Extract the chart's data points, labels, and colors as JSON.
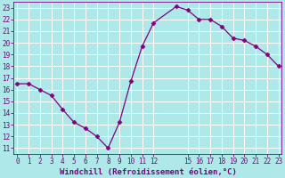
{
  "x": [
    0,
    1,
    2,
    3,
    4,
    5,
    6,
    7,
    8,
    9,
    10,
    11,
    12,
    14,
    15,
    16,
    17,
    18,
    19,
    20,
    21,
    22,
    23
  ],
  "y": [
    16.5,
    16.5,
    16.0,
    15.5,
    14.3,
    13.2,
    12.7,
    12.0,
    11.0,
    13.2,
    16.7,
    19.7,
    21.7,
    23.1,
    22.8,
    22.0,
    22.0,
    21.4,
    20.4,
    20.2,
    19.7,
    19.0,
    18.0
  ],
  "line_color": "#800080",
  "marker": "D",
  "markersize": 2.5,
  "linewidth": 0.9,
  "bg_color": "#aee8e8",
  "grid_color": "#ffffff",
  "xlabel": "Windchill (Refroidissement éolien,°C)",
  "yticks": [
    11,
    12,
    13,
    14,
    15,
    16,
    17,
    18,
    19,
    20,
    21,
    22,
    23
  ],
  "xtick_positions": [
    0,
    1,
    2,
    3,
    4,
    5,
    6,
    7,
    8,
    9,
    10,
    11,
    12,
    15,
    16,
    17,
    18,
    19,
    20,
    21,
    22,
    23
  ],
  "xtick_labels": [
    "0",
    "1",
    "2",
    "3",
    "4",
    "5",
    "6",
    "7",
    "8",
    "9",
    "10",
    "11",
    "12",
    "15",
    "16",
    "17",
    "18",
    "19",
    "20",
    "21",
    "22",
    "23"
  ],
  "xlim": [
    -0.3,
    23.3
  ],
  "ylim": [
    10.5,
    23.5
  ],
  "xlabel_fontsize": 6.5,
  "tick_fontsize": 5.5
}
